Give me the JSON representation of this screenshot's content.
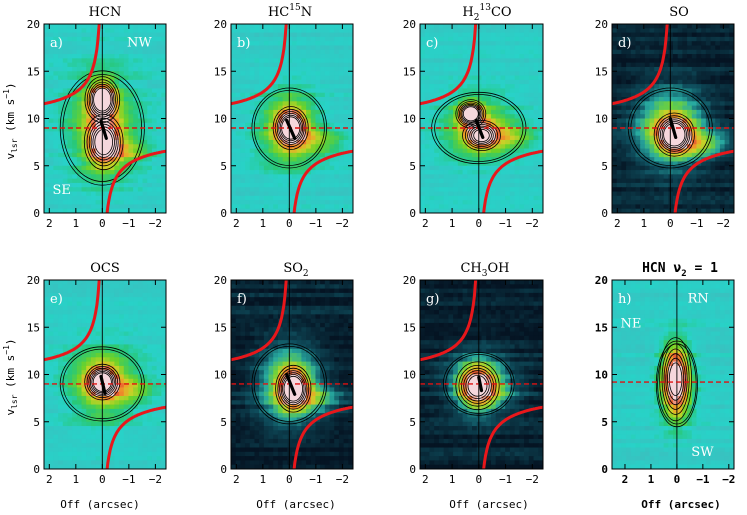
{
  "chart_data": [
    {
      "panel": "a)",
      "title": "HCN",
      "type": "heatmap",
      "xlabel": "",
      "ylabel": "v_lsr (km s^-1)",
      "xlim": [
        2.2,
        -2.4
      ],
      "ylim": [
        0,
        20
      ],
      "xticks": [
        2,
        1,
        0,
        -1,
        -2
      ],
      "yticks": [
        0,
        5,
        10,
        15,
        20
      ],
      "corner_labels": [
        "NW",
        "SE"
      ],
      "background": "cyan",
      "peaks": [
        {
          "x": 0.0,
          "y": 12.0,
          "sx": 0.35,
          "sy": 1.3,
          "a": 1.0
        },
        {
          "x": -0.05,
          "y": 7.5,
          "sx": 0.4,
          "sy": 1.6,
          "a": 0.9
        }
      ],
      "spread": {
        "sx": 0.9,
        "sy": 4.0,
        "a": 0.45
      },
      "tail": {
        "x": -1.0,
        "y": 6.5,
        "a": 0.35
      },
      "black_segment": [
        [
          0.05,
          9.7
        ],
        [
          -0.15,
          7.9
        ]
      ],
      "dashed_velocity": 9.0
    },
    {
      "panel": "b)",
      "title": "HC15N",
      "type": "heatmap",
      "xlabel": "",
      "ylabel": "",
      "xlim": [
        2.2,
        -2.4
      ],
      "ylim": [
        0,
        20
      ],
      "xticks": [
        2,
        1,
        0,
        -1,
        -2
      ],
      "yticks": [
        0,
        5,
        10,
        15,
        20
      ],
      "corner_labels": [],
      "background": "cyan",
      "peaks": [
        {
          "x": -0.05,
          "y": 9.0,
          "sx": 0.35,
          "sy": 1.2,
          "a": 1.0
        }
      ],
      "spread": {
        "sx": 0.8,
        "sy": 2.8,
        "a": 0.55
      },
      "tail": {
        "x": -1.2,
        "y": 7.5,
        "a": 0.3
      },
      "black_segment": [
        [
          0.1,
          9.8
        ],
        [
          -0.2,
          7.9
        ]
      ],
      "dashed_velocity": 9.0
    },
    {
      "panel": "c)",
      "title": "H2 13CO",
      "type": "heatmap",
      "xlabel": "",
      "ylabel": "",
      "xlim": [
        2.2,
        -2.4
      ],
      "ylim": [
        0,
        20
      ],
      "xticks": [
        2,
        1,
        0,
        -1,
        -2
      ],
      "yticks": [
        0,
        5,
        10,
        15,
        20
      ],
      "corner_labels": [],
      "background": "cyan",
      "peaks": [
        {
          "x": 0.3,
          "y": 10.5,
          "sx": 0.3,
          "sy": 0.8,
          "a": 1.0
        },
        {
          "x": -0.1,
          "y": 8.2,
          "sx": 0.4,
          "sy": 0.9,
          "a": 0.8
        }
      ],
      "spread": {
        "sx": 1.0,
        "sy": 2.5,
        "a": 0.45
      },
      "tail": {
        "x": -1.2,
        "y": 8.0,
        "a": 0.3
      },
      "black_segment": [
        [
          0.1,
          9.8
        ],
        [
          -0.15,
          8.0
        ]
      ],
      "dashed_velocity": 9.0
    },
    {
      "panel": "d)",
      "title": "SO",
      "type": "heatmap",
      "xlabel": "",
      "ylabel": "",
      "xlim": [
        2.2,
        -2.4
      ],
      "ylim": [
        0,
        20
      ],
      "xticks": [
        2,
        1,
        0,
        -1,
        -2
      ],
      "yticks": [
        0,
        5,
        10,
        15,
        20
      ],
      "corner_labels": [],
      "background": "dark",
      "peaks": [
        {
          "x": -0.15,
          "y": 8.3,
          "sx": 0.4,
          "sy": 1.2,
          "a": 1.0
        }
      ],
      "spread": {
        "sx": 0.9,
        "sy": 2.8,
        "a": 0.6
      },
      "tail": {
        "x": -1.2,
        "y": 7.2,
        "a": 0.4
      },
      "black_segment": [
        [
          0.0,
          10.0
        ],
        [
          -0.2,
          8.0
        ]
      ],
      "dashed_velocity": 9.0
    },
    {
      "panel": "e)",
      "title": "OCS",
      "type": "heatmap",
      "xlabel": "Off (arcsec)",
      "ylabel": "v_lsr (km s^-1)",
      "xlim": [
        2.2,
        -2.4
      ],
      "ylim": [
        0,
        20
      ],
      "xticks": [
        2,
        1,
        0,
        -1,
        -2
      ],
      "yticks": [
        0,
        5,
        10,
        15,
        20
      ],
      "corner_labels": [],
      "background": "cyan",
      "peaks": [
        {
          "x": 0.0,
          "y": 9.2,
          "sx": 0.35,
          "sy": 1.0,
          "a": 1.0
        }
      ],
      "spread": {
        "sx": 0.9,
        "sy": 2.6,
        "a": 0.55
      },
      "tail": {
        "x": -1.1,
        "y": 8.2,
        "a": 0.3
      },
      "black_segment": [
        [
          0.05,
          9.8
        ],
        [
          -0.1,
          8.0
        ]
      ],
      "dashed_velocity": 9.0
    },
    {
      "panel": "f)",
      "title": "SO2",
      "type": "heatmap",
      "xlabel": "Off (arcsec)",
      "ylabel": "",
      "xlim": [
        2.2,
        -2.4
      ],
      "ylim": [
        0,
        20
      ],
      "xticks": [
        2,
        1,
        0,
        -1,
        -2
      ],
      "yticks": [
        0,
        5,
        10,
        15,
        20
      ],
      "corner_labels": [],
      "background": "dark",
      "peaks": [
        {
          "x": -0.15,
          "y": 8.5,
          "sx": 0.35,
          "sy": 1.3,
          "a": 1.0
        }
      ],
      "spread": {
        "sx": 0.8,
        "sy": 2.8,
        "a": 0.6
      },
      "tail": {
        "x": -1.0,
        "y": 7.5,
        "a": 0.3
      },
      "black_segment": [
        [
          0.1,
          10.0
        ],
        [
          -0.2,
          7.9
        ]
      ],
      "dashed_velocity": 9.0
    },
    {
      "panel": "g)",
      "title": "CH3OH",
      "type": "heatmap",
      "xlabel": "Off (arcsec)",
      "ylabel": "",
      "xlim": [
        2.2,
        -2.4
      ],
      "ylim": [
        0,
        20
      ],
      "xticks": [
        2,
        1,
        0,
        -1,
        -2
      ],
      "yticks": [
        0,
        5,
        10,
        15,
        20
      ],
      "corner_labels": [],
      "background": "dark",
      "peaks": [
        {
          "x": 0.05,
          "y": 8.8,
          "sx": 0.45,
          "sy": 1.4,
          "a": 0.85
        }
      ],
      "spread": {
        "sx": 0.75,
        "sy": 2.2,
        "a": 0.45
      },
      "tail": {
        "x": -0.6,
        "y": 8.0,
        "a": 0.2
      },
      "black_segment": [
        [
          0.0,
          9.7
        ],
        [
          -0.1,
          8.3
        ]
      ],
      "dashed_velocity": 9.0
    },
    {
      "panel": "h)",
      "title": "HCN ν2 = 1",
      "type": "heatmap",
      "xlabel": "Off (arcsec)",
      "ylabel": "",
      "xlim": [
        2.5,
        -2.2
      ],
      "ylim": [
        0,
        20
      ],
      "xticks": [
        2,
        1,
        0,
        -1,
        -2
      ],
      "yticks": [
        0,
        5,
        10,
        15,
        20
      ],
      "corner_labels": [
        "RN",
        "NE",
        "SW"
      ],
      "background": "cyan",
      "peaks": [
        {
          "x": 0.05,
          "y": 9.5,
          "sx": 0.35,
          "sy": 2.5,
          "a": 0.8
        }
      ],
      "spread": {
        "sx": 0.45,
        "sy": 3.0,
        "a": 0.4
      },
      "tail": null,
      "black_segment": null,
      "dashed_velocity": 9.2
    }
  ],
  "texts": {
    "titles": [
      "HCN",
      "HC",
      "15",
      "N",
      "H",
      "2",
      "13",
      "CO",
      "SO",
      "OCS",
      "SO",
      "2",
      "CH",
      "3",
      "OH",
      "HCN ν",
      "2",
      " = 1"
    ],
    "ylabel_main": "v",
    "ylabel_sub": "lsr",
    "ylabel_units": " (km s",
    "ylabel_exp": "−1",
    "ylabel_close": ")",
    "xlabel": "Off (arcsec)",
    "xtick_labels": [
      "2",
      "1",
      "0",
      "−1",
      "−2"
    ],
    "ytick_labels": [
      "0",
      "5",
      "10",
      "15",
      "20"
    ]
  }
}
